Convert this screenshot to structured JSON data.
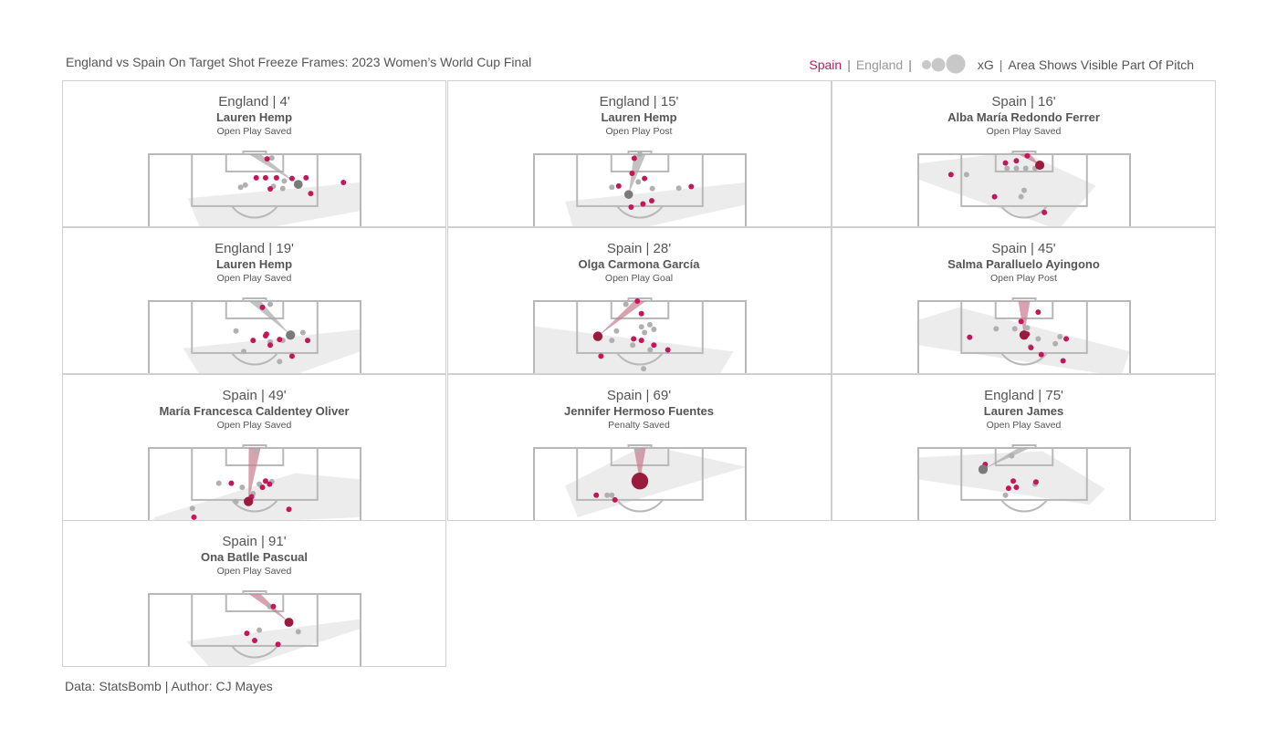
{
  "header": {
    "title": "England vs Spain On Target Shot Freeze Frames: 2023 Women’s World Cup Final",
    "legend": {
      "spain": "Spain",
      "england": "England",
      "xg": "xG",
      "area_note": "Area Shows Visible Part Of Pitch",
      "sep": "|"
    }
  },
  "footer": {
    "credit": "Data: StatsBomb | Author: CJ Mayes"
  },
  "colors": {
    "spain": "#c2185b",
    "spain_shooter": "#9b1b3f",
    "england": "#b0b0b0",
    "england_shooter": "#7a7a7a",
    "visible_area": "#ececec",
    "pitch_lines": "#b8b8b8"
  },
  "panels": [
    {
      "team_label": "England | 4'",
      "player": "Lauren Hemp",
      "outcome": "Open Play Saved"
    },
    {
      "team_label": "England | 15'",
      "player": "Lauren Hemp",
      "outcome": "Open Play Post"
    },
    {
      "team_label": "Spain | 16'",
      "player": "Alba María Redondo Ferrer",
      "outcome": "Open Play Saved"
    },
    {
      "team_label": "England | 19'",
      "player": "Lauren Hemp",
      "outcome": "Open Play Saved"
    },
    {
      "team_label": "Spain | 28'",
      "player": "Olga  Carmona García",
      "outcome": "Open Play Goal"
    },
    {
      "team_label": "Spain | 45'",
      "player": "Salma Paralluelo Ayingono",
      "outcome": "Open Play Post"
    },
    {
      "team_label": "Spain | 49'",
      "player": "María Francesca Caldentey Oliver",
      "outcome": "Open Play Saved"
    },
    {
      "team_label": "Spain | 69'",
      "player": "Jennifer Hermoso Fuentes",
      "outcome": "Penalty Saved"
    },
    {
      "team_label": "England | 75'",
      "player": "Lauren James",
      "outcome": "Open Play Saved"
    },
    {
      "team_label": "Spain | 91'",
      "player": "Ona Batlle Pascual",
      "outcome": "Open Play Saved"
    }
  ],
  "chart_data": {
    "type": "scatter",
    "title": "England vs Spain On Target Shot Freeze Frames: 2023 Women’s World Cup Final",
    "coordinate_units": "pitch metres: x across pitch width from left touchline (0-68), y distance from goal line (0-~22)",
    "series": [
      {
        "name": "Spain"
      },
      {
        "name": "England"
      }
    ],
    "shots": [
      {
        "team": "England",
        "minute": 4,
        "player": "Lauren Hemp",
        "outcome": "Open Play Saved",
        "shot": {
          "x": 48,
          "y": 9.6,
          "xg": 0.06
        },
        "england": [
          [
            39.5,
            1.2
          ],
          [
            40,
            10.2
          ],
          [
            31,
            9.8
          ],
          [
            43,
            10.9
          ],
          [
            29.5,
            10.5
          ],
          [
            43.5,
            8.5
          ]
        ],
        "spain": [
          [
            38,
            1.5
          ],
          [
            34.5,
            7.5
          ],
          [
            37.5,
            7.5
          ],
          [
            41,
            7.5
          ],
          [
            50.5,
            7.5
          ],
          [
            52,
            12.5
          ],
          [
            62.5,
            9
          ],
          [
            46,
            7.7
          ],
          [
            39,
            11
          ]
        ],
        "area": [
          [
            12.5,
            14
          ],
          [
            68,
            9
          ],
          [
            68,
            18
          ],
          [
            18,
            27
          ]
        ]
      },
      {
        "team": "England",
        "minute": 15,
        "player": "Lauren Hemp",
        "outcome": "Open Play Post",
        "shot": {
          "x": 30.4,
          "y": 12.8,
          "xg": 0.05
        },
        "england": [
          [
            34,
            0
          ],
          [
            25,
            10.5
          ],
          [
            38,
            10.9
          ],
          [
            46.5,
            10.8
          ],
          [
            33.5,
            8.8
          ]
        ],
        "spain": [
          [
            32.2,
            1.3
          ],
          [
            31.5,
            6.1
          ],
          [
            27.2,
            10.1
          ],
          [
            35.5,
            7.7
          ],
          [
            35,
            15.8
          ],
          [
            37.8,
            14.8
          ],
          [
            50.5,
            10.3
          ],
          [
            31.2,
            16.8
          ]
        ],
        "area": [
          [
            10,
            15
          ],
          [
            68,
            9
          ],
          [
            68,
            16
          ],
          [
            14,
            28
          ]
        ]
      },
      {
        "team": "Spain",
        "minute": 16,
        "player": "Alba María Redondo Ferrer",
        "outcome": "Open Play Saved",
        "shot": {
          "x": 39,
          "y": 3.5,
          "xg": 0.09
        },
        "england": [
          [
            28.5,
            4.5
          ],
          [
            31.5,
            4.5
          ],
          [
            34.5,
            4.5
          ],
          [
            37.5,
            4.5
          ],
          [
            15.5,
            6.5
          ],
          [
            33,
            13.5
          ],
          [
            34,
            11.5
          ]
        ],
        "spain": [
          [
            31.5,
            2.1
          ],
          [
            35,
            0.5
          ],
          [
            28,
            2.8
          ],
          [
            10.5,
            6.5
          ],
          [
            24.5,
            13.5
          ],
          [
            40.5,
            18.5
          ]
        ],
        "area": [
          [
            0,
            3
          ],
          [
            33,
            -1
          ],
          [
            57,
            10
          ],
          [
            45,
            24
          ],
          [
            0,
            8
          ]
        ]
      },
      {
        "team": "England",
        "minute": 19,
        "player": "Lauren Hemp",
        "outcome": "Open Play Saved",
        "shot": {
          "x": 45.5,
          "y": 10.8,
          "xg": 0.1
        },
        "england": [
          [
            28,
            9.5
          ],
          [
            43,
            12.5
          ],
          [
            49.5,
            10
          ],
          [
            39,
            13
          ],
          [
            42,
            19.2
          ],
          [
            39,
            1
          ],
          [
            30.5,
            16
          ]
        ],
        "spain": [
          [
            36.5,
            2
          ],
          [
            37.5,
            11
          ],
          [
            39,
            14
          ],
          [
            51,
            12.5
          ],
          [
            46,
            17.5
          ],
          [
            42,
            12.2
          ],
          [
            31.5,
            24
          ],
          [
            37.8,
            10.5
          ],
          [
            33.5,
            12.5
          ]
        ],
        "area": [
          [
            11,
            15
          ],
          [
            68,
            9
          ],
          [
            68,
            16
          ],
          [
            45,
            24
          ],
          [
            18,
            26
          ]
        ]
      },
      {
        "team": "Spain",
        "minute": 28,
        "player": "Olga  Carmona García",
        "outcome": "Open Play Goal",
        "shot": {
          "x": 20.5,
          "y": 11.2,
          "xg": 0.12
        },
        "england": [
          [
            29.5,
            1
          ],
          [
            37.2,
            7.5
          ],
          [
            26.5,
            9.5
          ],
          [
            34.5,
            8.2
          ],
          [
            35.5,
            10
          ],
          [
            25,
            12.5
          ],
          [
            31.7,
            14
          ],
          [
            37.3,
            15.5
          ],
          [
            35.2,
            21.5
          ],
          [
            38.5,
            9
          ]
        ],
        "spain": [
          [
            33.2,
            0
          ],
          [
            34.5,
            12.5
          ],
          [
            38.5,
            14
          ],
          [
            43,
            15.5
          ],
          [
            32,
            12
          ],
          [
            21.5,
            17.5
          ],
          [
            34.5,
            4
          ]
        ],
        "area": [
          [
            0,
            8
          ],
          [
            64,
            16
          ],
          [
            58,
            26
          ],
          [
            0,
            24
          ]
        ]
      },
      {
        "team": "Spain",
        "minute": 45,
        "player": "Salma Paralluelo Ayingono",
        "outcome": "Open Play Post",
        "shot": {
          "x": 34,
          "y": 10.8,
          "xg": 0.11
        },
        "england": [
          [
            25,
            8.8
          ],
          [
            31,
            8.8
          ],
          [
            35,
            8.5
          ],
          [
            38.5,
            12
          ],
          [
            45.5,
            11.3
          ],
          [
            44,
            13.5
          ],
          [
            36,
            14.5
          ]
        ],
        "spain": [
          [
            33,
            6.5
          ],
          [
            47.5,
            12
          ],
          [
            34,
            11
          ],
          [
            35,
            10.5
          ],
          [
            16.5,
            11.5
          ],
          [
            36.2,
            14.8
          ],
          [
            39.5,
            17
          ],
          [
            46.5,
            19
          ],
          [
            38.5,
            3.5
          ]
        ],
        "area": [
          [
            0,
            6
          ],
          [
            13,
            2
          ],
          [
            68,
            16
          ],
          [
            65,
            24
          ],
          [
            0,
            14
          ]
        ]
      },
      {
        "team": "Spain",
        "minute": 49,
        "player": "María Francesca Caldentey Oliver",
        "outcome": "Open Play Saved",
        "shot": {
          "x": 32,
          "y": 17,
          "xg": 0.11
        },
        "england": [
          [
            34.5,
            1
          ],
          [
            22.5,
            11.2
          ],
          [
            35.5,
            11.5
          ],
          [
            30,
            12.5
          ],
          [
            28,
            17
          ],
          [
            33.5,
            14.5
          ],
          [
            39.5,
            10.7
          ],
          [
            14,
            19.2
          ]
        ],
        "spain": [
          [
            26.5,
            11.2
          ],
          [
            37.5,
            10.5
          ],
          [
            38.8,
            11.5
          ],
          [
            36.5,
            12.5
          ],
          [
            33,
            15.5
          ],
          [
            45,
            19.5
          ],
          [
            14.5,
            22
          ]
        ],
        "area": [
          [
            2,
            22
          ],
          [
            47,
            8
          ],
          [
            68,
            10
          ],
          [
            68,
            22
          ],
          [
            0,
            25
          ]
        ]
      },
      {
        "team": "Spain",
        "minute": 69,
        "player": "Jennifer Hermoso Fuentes",
        "outcome": "Penalty Saved",
        "shot": {
          "x": 34,
          "y": 10.5,
          "xg": 0.78
        },
        "england": [
          [
            33,
            0.5
          ],
          [
            23.5,
            15
          ],
          [
            25,
            15
          ]
        ],
        "spain": [
          [
            20,
            15
          ],
          [
            26,
            16.5
          ]
        ],
        "area": [
          [
            10,
            12
          ],
          [
            36,
            -1
          ],
          [
            68,
            6
          ],
          [
            14,
            22
          ]
        ]
      },
      {
        "team": "England",
        "minute": 75,
        "player": "Lauren James",
        "outcome": "Open Play Saved",
        "shot": {
          "x": 20.8,
          "y": 6.8,
          "xg": 0.1
        },
        "england": [
          [
            30,
            2.5
          ],
          [
            37.5,
            11.5
          ],
          [
            28,
            15
          ],
          [
            21.5,
            6
          ]
        ],
        "spain": [
          [
            21.5,
            5.2
          ],
          [
            30.5,
            10.5
          ],
          [
            37.8,
            10.8
          ],
          [
            29,
            12.8
          ],
          [
            31.5,
            12.5
          ]
        ],
        "area": [
          [
            0,
            3
          ],
          [
            40,
            1
          ],
          [
            60,
            13
          ],
          [
            55,
            18
          ],
          [
            0,
            10
          ]
        ]
      },
      {
        "team": "Spain",
        "minute": 91,
        "player": "Ona Batlle Pascual",
        "outcome": "Open Play Saved",
        "shot": {
          "x": 45,
          "y": 9,
          "xg": 0.08
        },
        "england": [
          [
            38.8,
            4
          ],
          [
            35.5,
            11.5
          ],
          [
            48,
            12
          ]
        ],
        "spain": [
          [
            31.5,
            12.5
          ],
          [
            34,
            14.8
          ],
          [
            41.5,
            16
          ],
          [
            40,
            4
          ]
        ],
        "area": [
          [
            12,
            15
          ],
          [
            68,
            8
          ],
          [
            68,
            11
          ],
          [
            22,
            26
          ]
        ]
      }
    ]
  }
}
